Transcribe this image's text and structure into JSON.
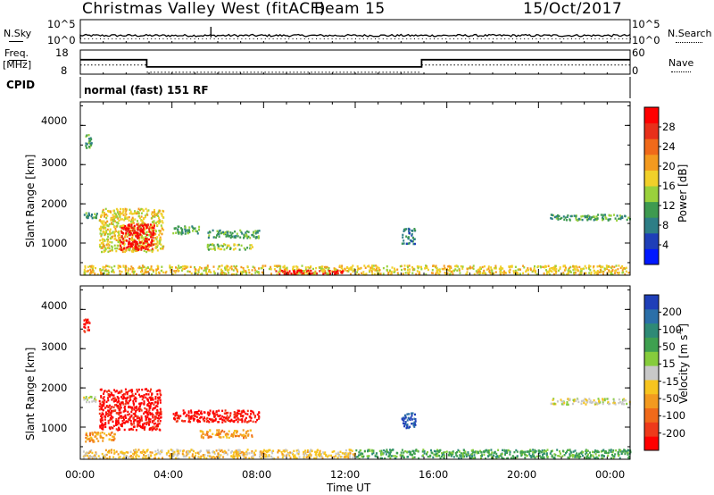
{
  "header": {
    "station": "Christmas Valley West (fitACF)",
    "beam": "Beam 15",
    "date": "15/Oct/2017"
  },
  "noise_panel": {
    "left_label": "N.Sky",
    "right_label": "N.Search",
    "ticks_left": [
      "10^5",
      "10^0"
    ],
    "ticks_right": [
      "10^5",
      "10^0"
    ]
  },
  "freq_panel": {
    "left_label_1": "Freq.",
    "left_label_2": "[MHz]",
    "right_label": "Nave",
    "ticks_left": [
      "18",
      "8"
    ],
    "ticks_right": [
      "60",
      "0"
    ]
  },
  "cpid": {
    "label": "CPID",
    "value": "normal (fast) 151 RF"
  },
  "power_panel": {
    "ylabel": "Slant Range [km]",
    "yticks": [
      "4000",
      "3000",
      "2000",
      "1000"
    ],
    "colorbar_label": "Power [dB]",
    "colorbar_ticks": [
      "28",
      "24",
      "20",
      "16",
      "12",
      "8",
      "4"
    ],
    "colors": [
      "#0018ff",
      "#1f3fb8",
      "#2e7e86",
      "#3e9a50",
      "#9ad13c",
      "#f1d02a",
      "#f39a1f",
      "#f06a1a",
      "#e8301a",
      "#ff0000"
    ]
  },
  "velocity_panel": {
    "ylabel": "Slant Range [km]",
    "yticks": [
      "4000",
      "3000",
      "2000",
      "1000"
    ],
    "colorbar_label": "Velocity [m s",
    "colorbar_sup": "-1",
    "colorbar_label_end": "]",
    "colorbar_ticks": [
      "200",
      "100",
      "50",
      "15",
      "-15",
      "-50",
      "-100",
      "-200"
    ],
    "colors": [
      "#1f3fb8",
      "#2b6fa8",
      "#2e8a76",
      "#3fa050",
      "#86cc3c",
      "#c8c8c8",
      "#f7c41f",
      "#f39a1f",
      "#f06a1a",
      "#ee3a1a",
      "#ff0000"
    ]
  },
  "x_axis": {
    "label": "Time UT",
    "ticks": [
      "00:00",
      "04:00",
      "08:00",
      "12:00",
      "16:00",
      "20:00",
      "00:00"
    ]
  },
  "chart_data": {
    "type": "heatmap",
    "title": "Christmas Valley West (fitACF)",
    "subtitle": "Beam 15 15/Oct/2017",
    "xlabel": "Time UT",
    "ylabel": "Slant Range [km]",
    "xlim": [
      0,
      24
    ],
    "ylim": [
      180,
      4600
    ],
    "freq_steps": [
      {
        "start": 0,
        "end": 2.9,
        "freq_mhz": 14
      },
      {
        "start": 2.9,
        "end": 14.9,
        "freq_mhz": 11
      },
      {
        "start": 14.9,
        "end": 24,
        "freq_mhz": 14
      }
    ],
    "power_regions": [
      {
        "t0": 0.2,
        "t1": 0.5,
        "r0": 3450,
        "r1": 3800,
        "power_db": 8
      },
      {
        "t0": 0.1,
        "t1": 24,
        "r0": 220,
        "r1": 450,
        "power_db": 14
      },
      {
        "t0": 8.5,
        "t1": 11.5,
        "r0": 230,
        "r1": 330,
        "power_db": 28
      },
      {
        "t0": 0.1,
        "t1": 0.7,
        "r0": 1650,
        "r1": 1800,
        "power_db": 8
      },
      {
        "t0": 0.8,
        "t1": 3.6,
        "r0": 800,
        "r1": 1900,
        "power_db": 14
      },
      {
        "t0": 1.7,
        "t1": 3.2,
        "r0": 850,
        "r1": 1500,
        "power_db": 26
      },
      {
        "t0": 4.0,
        "t1": 5.2,
        "r0": 1250,
        "r1": 1450,
        "power_db": 10
      },
      {
        "t0": 5.5,
        "t1": 7.8,
        "r0": 1150,
        "r1": 1350,
        "power_db": 10
      },
      {
        "t0": 5.5,
        "t1": 7.5,
        "r0": 850,
        "r1": 1000,
        "power_db": 12
      },
      {
        "t0": 14.0,
        "t1": 14.6,
        "r0": 1000,
        "r1": 1400,
        "power_db": 6
      },
      {
        "t0": 20.5,
        "t1": 24,
        "r0": 1600,
        "r1": 1750,
        "power_db": 8
      }
    ],
    "velocity_regions": [
      {
        "t0": 0.1,
        "t1": 0.4,
        "r0": 3450,
        "r1": 3800,
        "velocity": -150
      },
      {
        "t0": 0.1,
        "t1": 0.7,
        "r0": 1650,
        "r1": 1800,
        "velocity": 0
      },
      {
        "t0": 0.8,
        "t1": 3.5,
        "r0": 950,
        "r1": 2000,
        "velocity": -200
      },
      {
        "t0": 0.2,
        "t1": 1.5,
        "r0": 650,
        "r1": 900,
        "velocity": -70
      },
      {
        "t0": 4.0,
        "t1": 7.8,
        "r0": 1150,
        "r1": 1450,
        "velocity": -200
      },
      {
        "t0": 5.2,
        "t1": 7.5,
        "r0": 750,
        "r1": 950,
        "velocity": -60
      },
      {
        "t0": 0.1,
        "t1": 12,
        "r0": 220,
        "r1": 450,
        "velocity": -40
      },
      {
        "t0": 12,
        "t1": 24,
        "r0": 220,
        "r1": 450,
        "velocity": 40
      },
      {
        "t0": 14.0,
        "t1": 14.6,
        "r0": 1000,
        "r1": 1400,
        "velocity": 150
      },
      {
        "t0": 20.5,
        "t1": 24,
        "r0": 1600,
        "r1": 1750,
        "velocity": 0
      }
    ]
  }
}
